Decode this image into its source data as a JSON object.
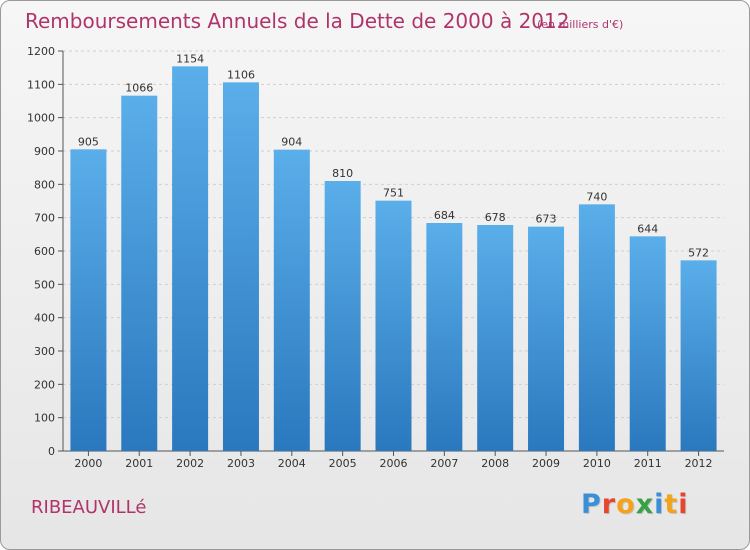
{
  "header": {
    "title": "Remboursements Annuels de la Dette de 2000 à 2012",
    "unit_note": "(en milliers d'€)"
  },
  "footer": {
    "commune": "RIBEAUVILLé",
    "logo_letters": [
      "P",
      "r",
      "o",
      "x",
      "i",
      "t",
      "i"
    ],
    "logo_colors": [
      "#3a8fd6",
      "#e8452e",
      "#f4a21c",
      "#3aa047",
      "#3a8fd6",
      "#f4a21c",
      "#e8452e"
    ]
  },
  "chart_data": {
    "type": "bar",
    "title": "Remboursements Annuels de la Dette de 2000 à 2012",
    "categories": [
      "2000",
      "2001",
      "2002",
      "2003",
      "2004",
      "2005",
      "2006",
      "2007",
      "2008",
      "2009",
      "2010",
      "2011",
      "2012"
    ],
    "values": [
      905,
      1066,
      1154,
      1106,
      904,
      810,
      751,
      684,
      678,
      673,
      740,
      644,
      572
    ],
    "ylim": [
      0,
      1200
    ],
    "yticks": [
      0,
      100,
      200,
      300,
      400,
      500,
      600,
      700,
      800,
      900,
      1000,
      1100,
      1200
    ],
    "grid": true,
    "bar_color_top": "#5aaee9",
    "bar_color_bottom": "#2a78be"
  }
}
